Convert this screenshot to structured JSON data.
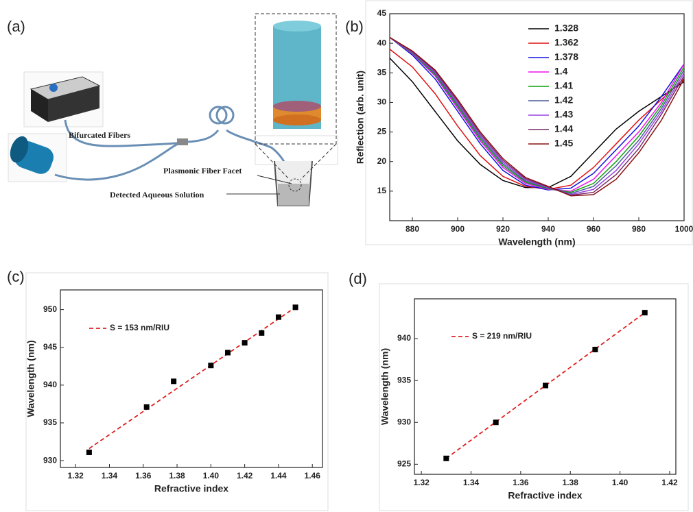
{
  "panel_labels": [
    "(a)",
    "(b)",
    "(c)",
    "(d)"
  ],
  "diagram": {
    "labels": [
      "Bifurcated Fibers",
      "Plasmonic Fiber Facet",
      "Detected Aqueous Solution"
    ]
  },
  "chart_data": [
    {
      "type": "line",
      "xlabel": "Wavelength (nm)",
      "ylabel": "Reflection (arb. unit)",
      "x": [
        870,
        880,
        890,
        900,
        910,
        920,
        930,
        940,
        950,
        960,
        970,
        980,
        990,
        1000
      ],
      "xlim": [
        870,
        1000
      ],
      "xticks": [
        880,
        900,
        920,
        940,
        960,
        980,
        1000
      ],
      "ylim": [
        10,
        45
      ],
      "yticks": [
        15,
        20,
        25,
        30,
        35,
        40,
        45
      ],
      "series": [
        {
          "name": "1.328",
          "color": "#000000",
          "values": [
            37.5,
            33.5,
            28.5,
            23.5,
            19.5,
            16.8,
            15.6,
            15.6,
            17.5,
            21.5,
            25.5,
            28.5,
            31.0,
            33.5
          ]
        },
        {
          "name": "1.362",
          "color": "#e01010",
          "values": [
            39,
            36,
            31.5,
            26,
            21,
            17.5,
            15.8,
            15.3,
            16,
            19,
            23,
            27,
            30.5,
            34
          ]
        },
        {
          "name": "1.378",
          "color": "#1010e0",
          "values": [
            41,
            38,
            34,
            28.5,
            23,
            18.5,
            16,
            15.2,
            15.5,
            18,
            22,
            26,
            31,
            36.5
          ]
        },
        {
          "name": "1.4",
          "color": "#ee10ee",
          "values": [
            41,
            38.2,
            34.5,
            29,
            23.5,
            19,
            16.3,
            15.3,
            15,
            17,
            21,
            25,
            30,
            36.5
          ]
        },
        {
          "name": "1.41",
          "color": "#10a010",
          "values": [
            41,
            38.3,
            34.7,
            29.3,
            23.8,
            19.3,
            16.5,
            15.4,
            14.8,
            16.3,
            20,
            24.3,
            29.5,
            36
          ]
        },
        {
          "name": "1.42",
          "color": "#4a5a9a",
          "values": [
            41,
            38.4,
            34.9,
            29.6,
            24.1,
            19.6,
            16.7,
            15.5,
            14.6,
            15.8,
            19.3,
            23.6,
            29,
            35.5
          ]
        },
        {
          "name": "1.43",
          "color": "#9a40e0",
          "values": [
            41,
            38.5,
            35.1,
            29.9,
            24.4,
            19.9,
            16.9,
            15.6,
            14.4,
            15.3,
            18.5,
            23,
            28.5,
            35
          ]
        },
        {
          "name": "1.44",
          "color": "#7a2a6a",
          "values": [
            41,
            38.6,
            35.3,
            30.2,
            24.7,
            20.2,
            17.1,
            15.7,
            14.3,
            14.8,
            17.8,
            22.2,
            28,
            34.5
          ]
        },
        {
          "name": "1.45",
          "color": "#8a1010",
          "values": [
            41,
            38.7,
            35.5,
            30.5,
            25,
            20.5,
            17.3,
            15.8,
            14.2,
            14.4,
            17,
            21.5,
            27,
            34
          ]
        }
      ]
    },
    {
      "type": "scatter",
      "xlabel": "Refractive index",
      "ylabel": "Wavelength (nm)",
      "marker_color": "#000000",
      "x": [
        1.328,
        1.362,
        1.378,
        1.4,
        1.41,
        1.42,
        1.43,
        1.44,
        1.45
      ],
      "values": [
        931.1,
        937.1,
        940.5,
        942.6,
        944.3,
        945.6,
        946.9,
        949,
        950.3
      ],
      "fit": {
        "name": "S = 153 nm/RIU",
        "color": "#e02020",
        "x": [
          1.328,
          1.45
        ],
        "values": [
          931.6,
          950.3
        ]
      },
      "xlim": [
        1.311,
        1.466
      ],
      "xticks": [
        1.32,
        1.34,
        1.36,
        1.38,
        {
          "value": 1.4,
          "label": "1.40"
        },
        1.42,
        1.44,
        1.46
      ],
      "ylim": [
        929.1,
        952.6
      ],
      "yticks": [
        930,
        935,
        940,
        945,
        950
      ]
    },
    {
      "type": "scatter",
      "xlabel": "Refractive index",
      "ylabel": "Wavelength (nm)",
      "marker_color": "#000000",
      "x": [
        1.33,
        1.35,
        1.37,
        1.39,
        1.41
      ],
      "values": [
        925.7,
        930.0,
        934.4,
        938.7,
        943.1
      ],
      "fit": {
        "name": "S = 219 nm/RIU",
        "color": "#e02020",
        "x": [
          1.33,
          1.41
        ],
        "values": [
          925.7,
          943.1
        ]
      },
      "xlim": [
        1.3172,
        1.4225
      ],
      "xticks": [
        1.32,
        1.34,
        1.36,
        1.38,
        {
          "value": 1.4,
          "label": "1.40"
        },
        1.42
      ],
      "ylim": [
        923.8,
        944.75
      ],
      "yticks": [
        925,
        930,
        935,
        940
      ]
    }
  ]
}
